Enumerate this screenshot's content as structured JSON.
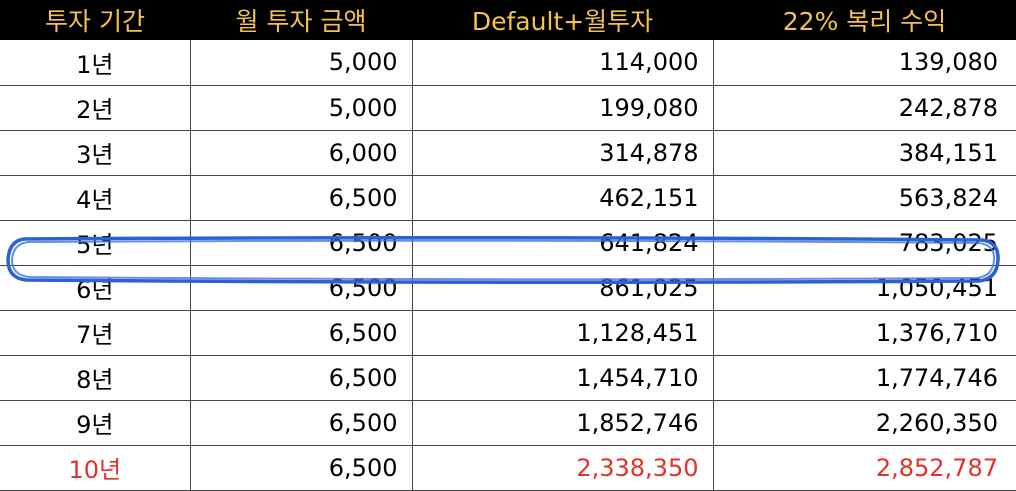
{
  "table": {
    "headers": [
      "투자 기간",
      "월 투자 금액",
      "Default+월투자",
      "22% 복리 수익"
    ],
    "rows": [
      {
        "period": "1년",
        "monthly": "5,000",
        "default_plus": "114,000",
        "compound": "139,080"
      },
      {
        "period": "2년",
        "monthly": "5,000",
        "default_plus": "199,080",
        "compound": "242,878"
      },
      {
        "period": "3년",
        "monthly": "6,000",
        "default_plus": "314,878",
        "compound": "384,151"
      },
      {
        "period": "4년",
        "monthly": "6,500",
        "default_plus": "462,151",
        "compound": "563,824"
      },
      {
        "period": "5년",
        "monthly": "6,500",
        "default_plus": "641,824",
        "compound": "783,025"
      },
      {
        "period": "6년",
        "monthly": "6,500",
        "default_plus": "861,025",
        "compound": "1,050,451"
      },
      {
        "period": "7년",
        "monthly": "6,500",
        "default_plus": "1,128,451",
        "compound": "1,376,710"
      },
      {
        "period": "8년",
        "monthly": "6,500",
        "default_plus": "1,454,710",
        "compound": "1,774,746"
      },
      {
        "period": "9년",
        "monthly": "6,500",
        "default_plus": "1,852,746",
        "compound": "2,260,350"
      },
      {
        "period": "10년",
        "monthly": "6,500",
        "default_plus": "2,338,350",
        "compound": "2,852,787"
      }
    ]
  },
  "colors": {
    "header_bg": "#000000",
    "header_text": "#f3c24f",
    "highlight_text": "#e0322b",
    "annotation_ring": "#2a62d6"
  }
}
